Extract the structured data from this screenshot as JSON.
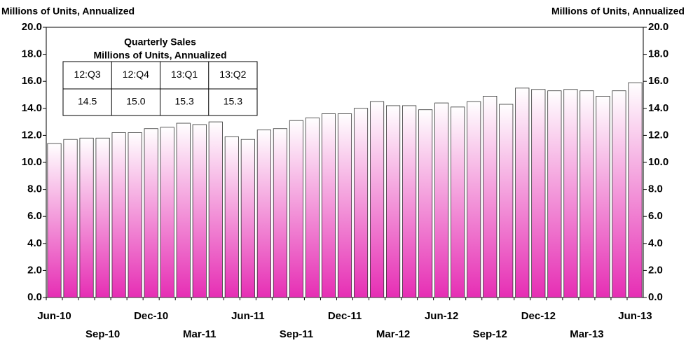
{
  "chart_data": {
    "type": "bar",
    "y_label": "Millions of Units, Annualized",
    "y2_label": "Millions of Units, Annualized",
    "categories": [
      "Jun-10",
      null,
      null,
      "Sep-10",
      null,
      null,
      "Dec-10",
      null,
      null,
      "Mar-11",
      null,
      null,
      "Jun-11",
      null,
      null,
      "Sep-11",
      null,
      null,
      "Dec-11",
      null,
      null,
      "Mar-12",
      null,
      null,
      "Jun-12",
      null,
      null,
      "Sep-12",
      null,
      null,
      "Dec-12",
      null,
      null,
      "Mar-13",
      null,
      null,
      "Jun-13"
    ],
    "values": [
      11.4,
      11.7,
      11.8,
      11.8,
      12.2,
      12.2,
      12.5,
      12.6,
      12.9,
      12.8,
      13.0,
      11.9,
      11.7,
      12.4,
      12.5,
      13.1,
      13.3,
      13.6,
      13.6,
      14.0,
      14.5,
      14.2,
      14.2,
      13.9,
      14.4,
      14.1,
      14.5,
      14.9,
      14.3,
      15.5,
      15.4,
      15.3,
      15.4,
      15.3,
      14.9,
      15.3,
      15.9
    ],
    "color": "#e62eb4",
    "ylim": [
      0,
      20
    ],
    "yticks": [
      {
        "value": 0,
        "label": "0.0"
      },
      {
        "value": 2,
        "label": "2.0"
      },
      {
        "value": 4,
        "label": "4.0"
      },
      {
        "value": 6,
        "label": "6.0"
      },
      {
        "value": 8,
        "label": "8.0"
      },
      {
        "value": 10,
        "label": "10.0"
      },
      {
        "value": 12,
        "label": "12.0"
      },
      {
        "value": 14,
        "label": "14.0"
      },
      {
        "value": 16,
        "label": "16.0"
      },
      {
        "value": 18,
        "label": "18.0"
      },
      {
        "value": 20,
        "label": "20.0"
      }
    ],
    "y2lim": [
      0,
      20
    ],
    "y2ticks": [
      {
        "value": 0,
        "label": "0.0"
      },
      {
        "value": 2,
        "label": "2.0"
      },
      {
        "value": 4,
        "label": "4.0"
      },
      {
        "value": 6,
        "label": "6.0"
      },
      {
        "value": 8,
        "label": "8.0"
      },
      {
        "value": 10,
        "label": "10.0"
      },
      {
        "value": 12,
        "label": "12.0"
      },
      {
        "value": 14,
        "label": "14.0"
      },
      {
        "value": 16,
        "label": "16.0"
      },
      {
        "value": 18,
        "label": "18.0"
      },
      {
        "value": 20,
        "label": "20.0"
      }
    ],
    "inset_table": {
      "title": "Quarterly Sales",
      "subtitle": "Millions of Units, Annualized",
      "header": [
        "12:Q3",
        "12:Q4",
        "13:Q1",
        "13:Q2"
      ],
      "values": [
        "14.5",
        "15.0",
        "15.3",
        "15.3"
      ]
    }
  }
}
